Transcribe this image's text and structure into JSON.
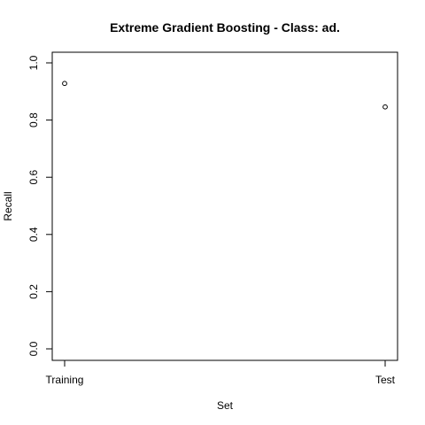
{
  "chart_data": {
    "type": "scatter",
    "title": "Extreme Gradient Boosting - Class: ad.",
    "xlabel": "Set",
    "ylabel": "Recall",
    "categories": [
      "Training",
      "Test"
    ],
    "values": [
      0.928,
      0.846
    ],
    "ylim": [
      0.0,
      1.0
    ],
    "yticks": [
      "0.0",
      "0.2",
      "0.4",
      "0.6",
      "0.8",
      "1.0"
    ],
    "grid": false,
    "marker": "open-circle"
  }
}
